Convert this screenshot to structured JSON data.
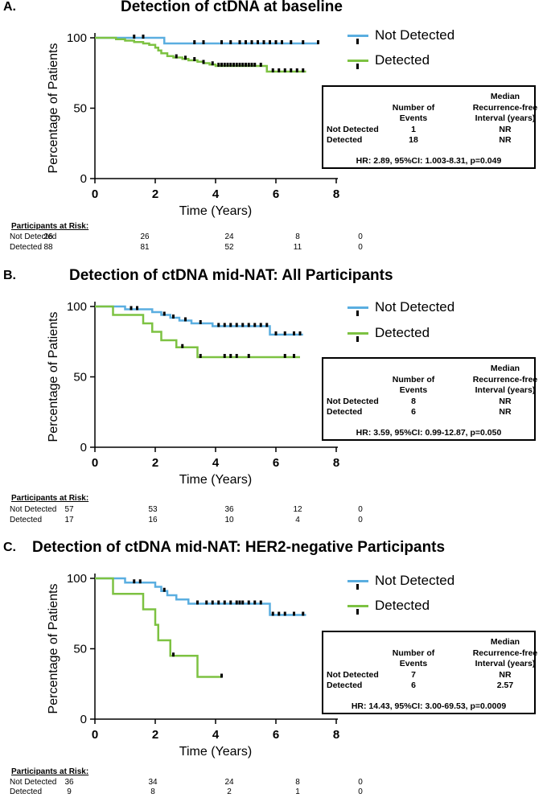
{
  "colors": {
    "not_detected": "#5aaee0",
    "detected": "#7dc242",
    "censor": "#000000"
  },
  "panels": [
    {
      "letter": "A.",
      "title": "Detection of ctDNA at baseline",
      "legend": [
        "Not Detected",
        "Detected"
      ],
      "stats": {
        "head_events_1": "Number of",
        "head_events_2": "Events",
        "head_median_1": "Median",
        "head_median_2": "Recurrence-free",
        "head_median_3": "Interval (years)",
        "row1_label": "Not Detected",
        "row1_events": "1",
        "row1_median": "NR",
        "row2_label": "Detected",
        "row2_events": "18",
        "row2_median": "NR",
        "hr": "HR: 2.89, 95%CI: 1.003-8.31, p=0.049"
      },
      "risk": {
        "heading": "Participants at Risk:",
        "rows": [
          {
            "label": "Not Detected",
            "values": [
              "26",
              "26",
              "24",
              "8",
              "0"
            ]
          },
          {
            "label": "Detected",
            "values": [
              "88",
              "81",
              "52",
              "11",
              "0"
            ]
          }
        ]
      }
    },
    {
      "letter": "B.",
      "title": "Detection of ctDNA mid-NAT: All Participants",
      "legend": [
        "Not Detected",
        "Detected"
      ],
      "stats": {
        "head_events_1": "Number of",
        "head_events_2": "Events",
        "head_median_1": "Median",
        "head_median_2": "Recurrence-free",
        "head_median_3": "Interval (years)",
        "row1_label": "Not Detected",
        "row1_events": "8",
        "row1_median": "NR",
        "row2_label": "Detected",
        "row2_events": "6",
        "row2_median": "NR",
        "hr": "HR: 3.59, 95%CI: 0.99-12.87, p=0.050"
      },
      "risk": {
        "heading": "Participants at Risk:",
        "rows": [
          {
            "label": "Not Detected",
            "values": [
              "57",
              "53",
              "36",
              "12",
              "0"
            ]
          },
          {
            "label": "Detected",
            "values": [
              "17",
              "16",
              "10",
              "4",
              "0"
            ]
          }
        ]
      }
    },
    {
      "letter": "C.",
      "title": "Detection of ctDNA mid-NAT: HER2-negative Participants",
      "legend": [
        "Not Detected",
        "Detected"
      ],
      "stats": {
        "head_events_1": "Number of",
        "head_events_2": "Events",
        "head_median_1": "Median",
        "head_median_2": "Recurrence-free",
        "head_median_3": "Interval (years)",
        "row1_label": "Not Detected",
        "row1_events": "7",
        "row1_median": "NR",
        "row2_label": "Detected",
        "row2_events": "6",
        "row2_median": "2.57",
        "hr": "HR: 14.43, 95%CI: 3.00-69.53, p=0.0009"
      },
      "risk": {
        "heading": "Participants at Risk:",
        "rows": [
          {
            "label": "Not Detected",
            "values": [
              "36",
              "34",
              "24",
              "8",
              "0"
            ]
          },
          {
            "label": "Detected",
            "values": [
              "9",
              "8",
              "2",
              "1",
              "0"
            ]
          }
        ]
      }
    }
  ],
  "chart_data": [
    {
      "type": "line",
      "title": "Detection of ctDNA at baseline",
      "xlabel": "Time (Years)",
      "ylabel": "Percentage of Patients",
      "xlim": [
        0,
        8
      ],
      "ylim": [
        0,
        100
      ],
      "xticks": [
        "0",
        "2",
        "4",
        "6",
        "8"
      ],
      "yticks": [
        "0",
        "50",
        "100"
      ],
      "legend_position": "top-right",
      "series": [
        {
          "name": "Not Detected",
          "color": "#5aaee0",
          "steps": [
            [
              0,
              100
            ],
            [
              2.3,
              96
            ],
            [
              7.4,
              96
            ]
          ],
          "censored": [
            [
              1.3,
              100
            ],
            [
              1.6,
              100
            ],
            [
              3.3,
              96
            ],
            [
              3.6,
              96
            ],
            [
              4.2,
              96
            ],
            [
              4.5,
              96
            ],
            [
              4.8,
              96
            ],
            [
              5.0,
              96
            ],
            [
              5.2,
              96
            ],
            [
              5.4,
              96
            ],
            [
              5.6,
              96
            ],
            [
              5.8,
              96
            ],
            [
              6.0,
              96
            ],
            [
              6.2,
              96
            ],
            [
              6.5,
              96
            ],
            [
              6.9,
              96
            ],
            [
              7.4,
              96
            ]
          ]
        },
        {
          "name": "Detected",
          "color": "#7dc242",
          "steps": [
            [
              0,
              100
            ],
            [
              0.7,
              99
            ],
            [
              1.0,
              98
            ],
            [
              1.3,
              97
            ],
            [
              1.6,
              96
            ],
            [
              1.8,
              95
            ],
            [
              2.0,
              93
            ],
            [
              2.1,
              91
            ],
            [
              2.2,
              89
            ],
            [
              2.4,
              87
            ],
            [
              2.6,
              86
            ],
            [
              2.9,
              85
            ],
            [
              3.1,
              84
            ],
            [
              3.4,
              83
            ],
            [
              3.6,
              82
            ],
            [
              3.8,
              81
            ],
            [
              4.0,
              80
            ],
            [
              5.7,
              76
            ],
            [
              7.0,
              76
            ]
          ],
          "censored": [
            [
              2.7,
              86
            ],
            [
              3.0,
              85
            ],
            [
              3.3,
              84
            ],
            [
              3.6,
              82
            ],
            [
              3.9,
              81
            ],
            [
              4.1,
              80
            ],
            [
              4.2,
              80
            ],
            [
              4.3,
              80
            ],
            [
              4.4,
              80
            ],
            [
              4.5,
              80
            ],
            [
              4.6,
              80
            ],
            [
              4.7,
              80
            ],
            [
              4.8,
              80
            ],
            [
              4.9,
              80
            ],
            [
              5.0,
              80
            ],
            [
              5.1,
              80
            ],
            [
              5.2,
              80
            ],
            [
              5.3,
              80
            ],
            [
              5.5,
              80
            ],
            [
              5.9,
              76
            ],
            [
              6.1,
              76
            ],
            [
              6.3,
              76
            ],
            [
              6.5,
              76
            ],
            [
              6.7,
              76
            ],
            [
              6.9,
              76
            ]
          ]
        }
      ]
    },
    {
      "type": "line",
      "title": "Detection of ctDNA mid-NAT: All Participants",
      "xlabel": "Time (Years)",
      "ylabel": "Percentage of Patients",
      "xlim": [
        0,
        8
      ],
      "ylim": [
        0,
        100
      ],
      "xticks": [
        "0",
        "2",
        "4",
        "6",
        "8"
      ],
      "yticks": [
        "0",
        "50",
        "100"
      ],
      "legend_position": "top-right",
      "series": [
        {
          "name": "Not Detected",
          "color": "#5aaee0",
          "steps": [
            [
              0,
              100
            ],
            [
              1.0,
              98
            ],
            [
              1.9,
              96
            ],
            [
              2.2,
              94
            ],
            [
              2.5,
              92
            ],
            [
              2.8,
              90
            ],
            [
              3.2,
              88
            ],
            [
              3.9,
              86
            ],
            [
              5.8,
              80
            ],
            [
              6.9,
              80
            ]
          ],
          "censored": [
            [
              1.2,
              98
            ],
            [
              1.4,
              98
            ],
            [
              2.3,
              94
            ],
            [
              2.6,
              92
            ],
            [
              3.0,
              90
            ],
            [
              3.5,
              88
            ],
            [
              4.1,
              86
            ],
            [
              4.3,
              86
            ],
            [
              4.5,
              86
            ],
            [
              4.7,
              86
            ],
            [
              4.9,
              86
            ],
            [
              5.1,
              86
            ],
            [
              5.3,
              86
            ],
            [
              5.5,
              86
            ],
            [
              5.7,
              86
            ],
            [
              6.0,
              80
            ],
            [
              6.3,
              80
            ],
            [
              6.6,
              80
            ],
            [
              6.8,
              80
            ]
          ]
        },
        {
          "name": "Detected",
          "color": "#7dc242",
          "steps": [
            [
              0,
              100
            ],
            [
              0.6,
              94
            ],
            [
              1.6,
              88
            ],
            [
              1.9,
              82
            ],
            [
              2.2,
              76
            ],
            [
              2.7,
              71
            ],
            [
              3.4,
              64
            ],
            [
              6.8,
              64
            ]
          ],
          "censored": [
            [
              2.9,
              71
            ],
            [
              3.5,
              64
            ],
            [
              4.3,
              64
            ],
            [
              4.5,
              64
            ],
            [
              4.7,
              64
            ],
            [
              5.1,
              64
            ],
            [
              6.3,
              64
            ],
            [
              6.6,
              64
            ]
          ]
        }
      ]
    },
    {
      "type": "line",
      "title": "Detection of ctDNA mid-NAT: HER2-negative Participants",
      "xlabel": "Time (Years)",
      "ylabel": "Percentage of Patients",
      "xlim": [
        0,
        8
      ],
      "ylim": [
        0,
        100
      ],
      "xticks": [
        "0",
        "2",
        "4",
        "6",
        "8"
      ],
      "yticks": [
        "0",
        "50",
        "100"
      ],
      "legend_position": "top-right",
      "series": [
        {
          "name": "Not Detected",
          "color": "#5aaee0",
          "steps": [
            [
              0,
              100
            ],
            [
              1.0,
              97
            ],
            [
              2.0,
              94
            ],
            [
              2.2,
              91
            ],
            [
              2.4,
              88
            ],
            [
              2.7,
              85
            ],
            [
              3.1,
              82
            ],
            [
              5.8,
              74
            ],
            [
              7.0,
              74
            ]
          ],
          "censored": [
            [
              1.3,
              97
            ],
            [
              1.5,
              97
            ],
            [
              2.3,
              91
            ],
            [
              3.4,
              82
            ],
            [
              3.7,
              82
            ],
            [
              3.9,
              82
            ],
            [
              4.1,
              82
            ],
            [
              4.3,
              82
            ],
            [
              4.5,
              82
            ],
            [
              4.7,
              82
            ],
            [
              4.8,
              82
            ],
            [
              4.9,
              82
            ],
            [
              5.1,
              82
            ],
            [
              5.3,
              82
            ],
            [
              5.5,
              82
            ],
            [
              5.9,
              74
            ],
            [
              6.1,
              74
            ],
            [
              6.3,
              74
            ],
            [
              6.6,
              74
            ],
            [
              6.9,
              74
            ]
          ]
        },
        {
          "name": "Detected",
          "color": "#7dc242",
          "steps": [
            [
              0,
              100
            ],
            [
              0.6,
              89
            ],
            [
              1.6,
              78
            ],
            [
              2.0,
              67
            ],
            [
              2.1,
              56
            ],
            [
              2.5,
              45
            ],
            [
              3.4,
              30
            ],
            [
              4.2,
              30
            ]
          ],
          "censored": [
            [
              2.6,
              45
            ],
            [
              4.2,
              30
            ]
          ]
        }
      ]
    }
  ]
}
